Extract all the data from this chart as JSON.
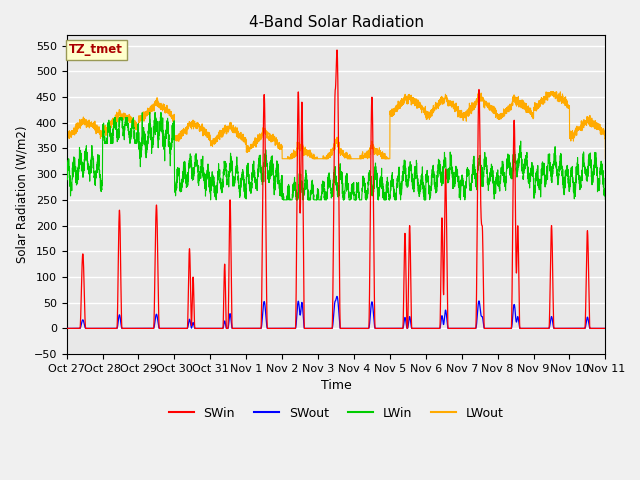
{
  "title": "4-Band Solar Radiation",
  "ylabel": "Solar Radiation (W/m2)",
  "xlabel": "Time",
  "annotation": "TZ_tmet",
  "ylim": [
    -50,
    570
  ],
  "legend_labels": [
    "SWin",
    "SWout",
    "LWin",
    "LWout"
  ],
  "legend_colors": [
    "#ff0000",
    "#0000ff",
    "#00cc00",
    "#ffaa00"
  ],
  "x_tick_labels": [
    "Oct 27",
    "Oct 28",
    "Oct 29",
    "Oct 30",
    "Oct 31",
    "Nov 1",
    "Nov 2",
    "Nov 3",
    "Nov 4",
    "Nov 5",
    "Nov 6",
    "Nov 7",
    "Nov 8",
    "Nov 9",
    "Nov 10",
    "Nov 11"
  ],
  "background_color": "#e8e8e8",
  "grid_color": "#ffffff",
  "SWin_color": "#ff0000",
  "SWout_color": "#0000ff",
  "LWin_color": "#00cc00",
  "LWout_color": "#ffaa00",
  "fig_width": 6.4,
  "fig_height": 4.8,
  "dpi": 100
}
